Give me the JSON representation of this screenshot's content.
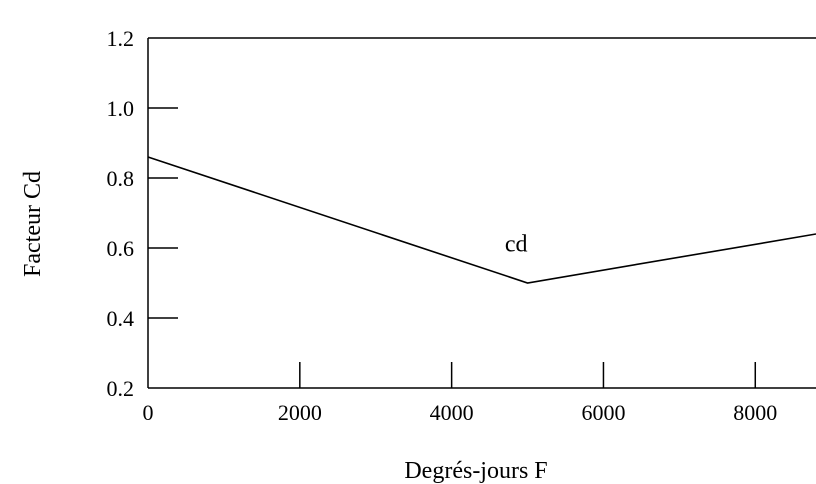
{
  "chart_data": {
    "type": "line",
    "title": "",
    "xlabel": "Degrés-jours F",
    "ylabel": "Facteur Cd",
    "xlim": [
      0,
      8800
    ],
    "ylim": [
      0.2,
      1.2
    ],
    "x_ticks": [
      0,
      2000,
      4000,
      6000,
      8000
    ],
    "y_ticks": [
      0.2,
      0.4,
      0.6,
      0.8,
      1.0,
      1.2
    ],
    "x_tick_labels": [
      "0",
      "2000",
      "4000",
      "6000",
      "8000"
    ],
    "y_tick_labels": [
      "0.2",
      "0.4",
      "0.6",
      "0.8",
      "1.0",
      "1.2"
    ],
    "grid": false,
    "series": [
      {
        "x": [
          0,
          5000,
          8800
        ],
        "y": [
          0.86,
          0.5,
          0.64
        ]
      }
    ],
    "annotations": [
      {
        "text": "cd",
        "x": 4850,
        "y": 0.59
      }
    ]
  }
}
